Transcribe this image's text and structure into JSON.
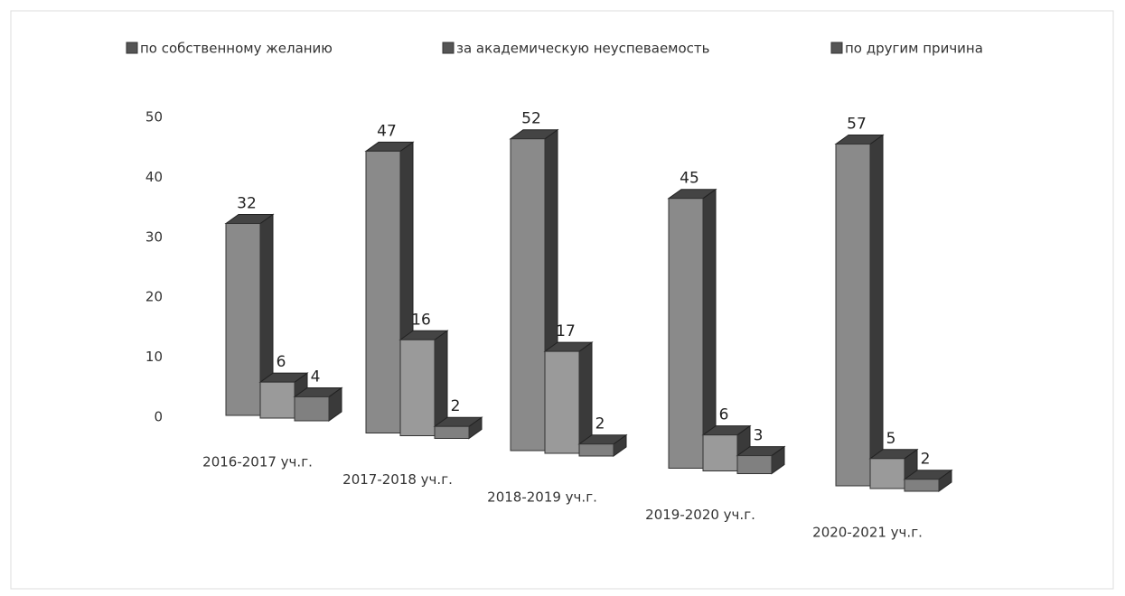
{
  "chart_data": {
    "type": "bar3d",
    "categories": [
      "2016-2017 уч.г.",
      "2017-2018 уч.г.",
      "2018-2019 уч.г.",
      "2019-2020 уч.г.",
      "2020-2021 уч.г."
    ],
    "series": [
      {
        "name": "по собственному желанию",
        "color": "#8a8a8a",
        "values": [
          32,
          47,
          52,
          45,
          57
        ]
      },
      {
        "name": "за академическую неуспеваемость",
        "color": "#9a9a9a",
        "values": [
          6,
          16,
          17,
          6,
          5
        ]
      },
      {
        "name": "по другим причина",
        "color": "#808080",
        "values": [
          4,
          2,
          2,
          3,
          2
        ]
      }
    ],
    "ylim": [
      0,
      60
    ],
    "yticks": [
      0,
      10,
      20,
      30,
      40,
      50
    ]
  }
}
